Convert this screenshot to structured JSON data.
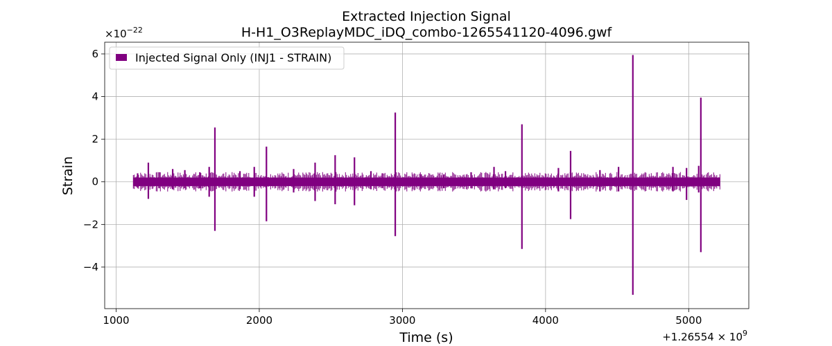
{
  "chart_data": {
    "type": "line",
    "title_line1": "Extracted Injection Signal",
    "title_line2": "H-H1_O3ReplayMDC_iDQ_combo-1265541120-4096.gwf",
    "xlabel": "Time (s)",
    "ylabel": "Strain",
    "x_offset_label": "+1.26554 × 10",
    "x_offset_exponent": "9",
    "y_scale_label": "×10",
    "y_scale_exponent": "−22",
    "xlim": [
      920,
      5420
    ],
    "ylim": [
      -5.95,
      6.55
    ],
    "xticks": [
      1000,
      2000,
      3000,
      4000,
      5000
    ],
    "xtick_labels": [
      "1000",
      "2000",
      "3000",
      "4000",
      "5000"
    ],
    "yticks": [
      -4,
      -2,
      0,
      2,
      4,
      6
    ],
    "ytick_labels": [
      "−4",
      "−2",
      "0",
      "2",
      "4",
      "6"
    ],
    "grid": true,
    "legend_position": "top-left",
    "series": [
      {
        "name": "Injected Signal Only (INJ1 - STRAIN)",
        "color": "#800080",
        "x_start": 1120,
        "x_end": 5220,
        "baseline_band": [
          -0.2,
          0.2
        ],
        "spikes": [
          {
            "x": 1150,
            "max": 0.4,
            "min": -0.25
          },
          {
            "x": 1225,
            "max": 0.9,
            "min": -0.8
          },
          {
            "x": 1300,
            "max": 0.45,
            "min": -0.3
          },
          {
            "x": 1395,
            "max": 0.6,
            "min": -0.35
          },
          {
            "x": 1480,
            "max": 0.55,
            "min": -0.3
          },
          {
            "x": 1585,
            "max": 0.45,
            "min": -0.3
          },
          {
            "x": 1650,
            "max": 0.7,
            "min": -0.7
          },
          {
            "x": 1690,
            "max": 2.55,
            "min": -2.3
          },
          {
            "x": 1865,
            "max": 0.5,
            "min": -0.35
          },
          {
            "x": 1965,
            "max": 0.7,
            "min": -0.7
          },
          {
            "x": 2050,
            "max": 1.65,
            "min": -1.85
          },
          {
            "x": 2240,
            "max": 0.6,
            "min": -0.5
          },
          {
            "x": 2390,
            "max": 0.9,
            "min": -0.9
          },
          {
            "x": 2530,
            "max": 1.25,
            "min": -1.05
          },
          {
            "x": 2665,
            "max": 1.15,
            "min": -1.1
          },
          {
            "x": 2780,
            "max": 0.5,
            "min": -0.35
          },
          {
            "x": 2860,
            "max": 0.4,
            "min": -0.3
          },
          {
            "x": 2950,
            "max": 3.25,
            "min": -2.55
          },
          {
            "x": 3130,
            "max": 0.35,
            "min": -0.3
          },
          {
            "x": 3290,
            "max": 0.35,
            "min": -0.3
          },
          {
            "x": 3480,
            "max": 0.45,
            "min": -0.3
          },
          {
            "x": 3640,
            "max": 0.7,
            "min": -0.35
          },
          {
            "x": 3720,
            "max": 0.5,
            "min": -0.3
          },
          {
            "x": 3835,
            "max": 2.7,
            "min": -3.15
          },
          {
            "x": 4090,
            "max": 0.65,
            "min": -0.45
          },
          {
            "x": 4175,
            "max": 1.45,
            "min": -1.75
          },
          {
            "x": 4380,
            "max": 0.55,
            "min": -0.45
          },
          {
            "x": 4510,
            "max": 0.7,
            "min": -0.45
          },
          {
            "x": 4610,
            "max": 5.95,
            "min": -5.3
          },
          {
            "x": 4890,
            "max": 0.7,
            "min": -0.45
          },
          {
            "x": 4985,
            "max": 0.65,
            "min": -0.85
          },
          {
            "x": 5070,
            "max": 0.75,
            "min": -0.5
          },
          {
            "x": 5085,
            "max": 3.95,
            "min": -3.3
          }
        ]
      }
    ]
  }
}
